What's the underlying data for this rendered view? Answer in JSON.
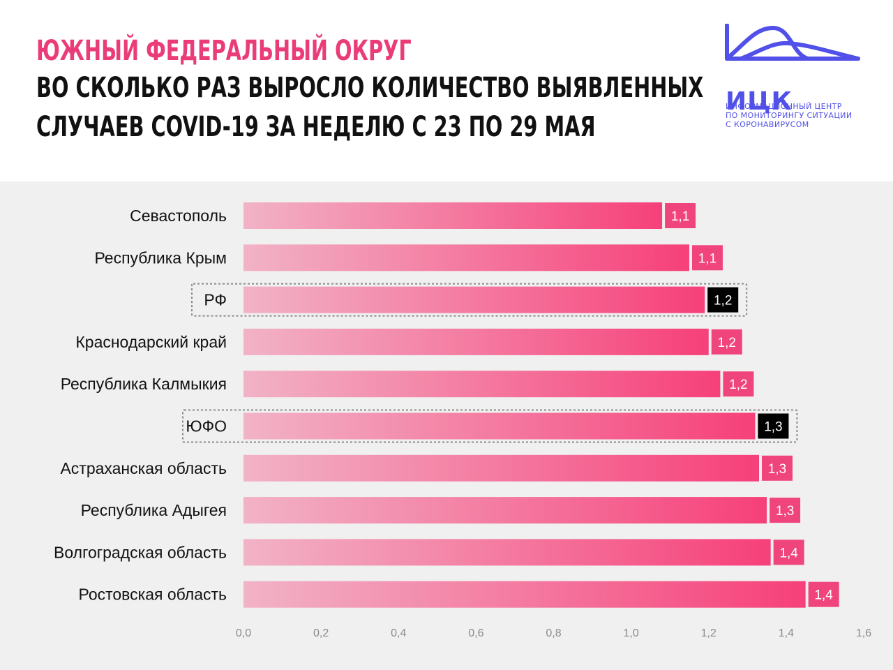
{
  "header": {
    "title_line1": "ЮЖНЫЙ ФЕДЕРАЛЬНЫЙ ОКРУГ",
    "title_line2": "ВО СКОЛЬКО РАЗ ВЫРОСЛО КОЛИЧЕСТВО ВЫЯВЛЕННЫХ",
    "title_line3": "СЛУЧАЕВ   COVID-19 ЗА НЕДЕЛЮ С 23 ПО 29 МАЯ"
  },
  "logo": {
    "abbr": "ИЦК",
    "subtitle_lines": [
      "ИНФОРМАЦИОННЫЙ ЦЕНТР",
      "ПО МОНИТОРИНГУ СИТУАЦИИ",
      "С КОРОНАВИРУСОМ"
    ],
    "color": "#5150e8"
  },
  "colors": {
    "title_accent": "#ea3c78",
    "bar_start": "#f2b3c6",
    "bar_end": "#f6407a",
    "label_default_bg": "#f0457c",
    "label_highlight_bg": "#000000"
  },
  "chart_data": {
    "type": "bar",
    "orientation": "horizontal",
    "categories": [
      "Севастополь",
      "Республика Крым",
      "РФ",
      "Краснодарский край",
      "Республика Калмыкия",
      "ЮФО",
      "Астраханская область",
      "Республика Адыгея",
      "Волгоградская область",
      "Ростовская область"
    ],
    "values": [
      1.08,
      1.15,
      1.19,
      1.2,
      1.23,
      1.32,
      1.33,
      1.35,
      1.36,
      1.45
    ],
    "value_labels": [
      "1,1",
      "1,1",
      "1,2",
      "1,2",
      "1,2",
      "1,3",
      "1,3",
      "1,3",
      "1,4",
      "1,4"
    ],
    "highlighted": [
      false,
      false,
      true,
      false,
      false,
      true,
      false,
      false,
      false,
      false
    ],
    "xlim": [
      0,
      1.6
    ],
    "xticks": [
      0,
      0.2,
      0.4,
      0.6,
      0.8,
      1.0,
      1.2,
      1.4,
      1.6
    ],
    "xtick_labels": [
      "0,0",
      "0,2",
      "0,4",
      "0,6",
      "0,8",
      "1,0",
      "1,2",
      "1,4",
      "1,6"
    ],
    "grid": false,
    "legend": "none"
  }
}
